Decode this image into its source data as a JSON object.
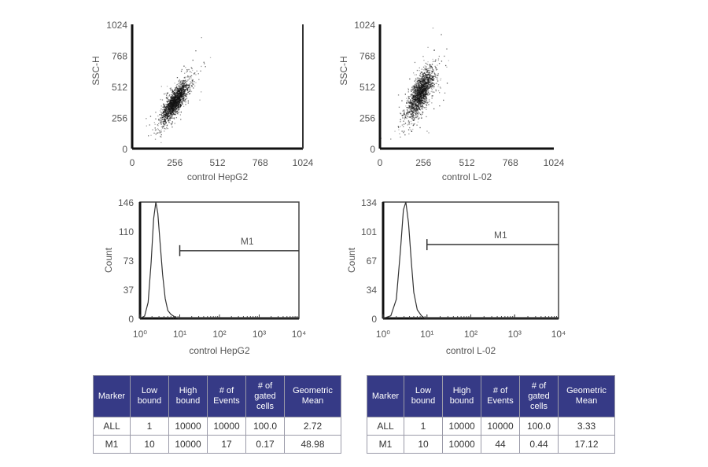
{
  "chart_data": [
    {
      "id": "scatter-hepg2",
      "type": "scatter",
      "xlabel": "control HepG2",
      "ylabel": "SSC-H",
      "xlim": [
        0,
        1024
      ],
      "ylim": [
        0,
        1024
      ],
      "xticks": [
        "0",
        "256",
        "512",
        "768",
        "1024"
      ],
      "yticks": [
        "0",
        "256",
        "512",
        "768",
        "1024"
      ],
      "cluster": {
        "x_center": 255,
        "y_center": 390,
        "x_sd": 40,
        "y_sd": 85,
        "correlation": 0.8,
        "events": 10000
      },
      "grid": false,
      "color": "#111111"
    },
    {
      "id": "scatter-l02",
      "type": "scatter",
      "xlabel": "control L-02",
      "ylabel": "SSC-H",
      "xlim": [
        0,
        1024
      ],
      "ylim": [
        0,
        1024
      ],
      "xticks": [
        "0",
        "256",
        "512",
        "768",
        "1024"
      ],
      "yticks": [
        "0",
        "256",
        "512",
        "768",
        "1024"
      ],
      "cluster": {
        "x_center": 235,
        "y_center": 460,
        "x_sd": 38,
        "y_sd": 100,
        "correlation": 0.7,
        "events": 10000
      },
      "grid": false,
      "color": "#111111"
    },
    {
      "id": "hist-hepg2",
      "type": "line",
      "xlabel": "control HepG2",
      "ylabel": "Count",
      "xscale": "log",
      "xlim": [
        1,
        10000
      ],
      "ylim": [
        0,
        146
      ],
      "xticks": [
        "10⁰",
        "10¹",
        "10²",
        "10³",
        "10⁴"
      ],
      "yticks": [
        "0",
        "37",
        "73",
        "110",
        "146"
      ],
      "x": [
        1.0,
        1.3,
        1.6,
        1.9,
        2.2,
        2.5,
        2.8,
        3.2,
        3.7,
        4.3,
        5.0,
        6.0,
        7.5,
        9.0,
        10000
      ],
      "y": [
        0,
        3,
        20,
        70,
        125,
        146,
        132,
        95,
        55,
        25,
        10,
        5,
        2,
        0,
        0
      ],
      "marker": {
        "label": "M1",
        "low": 10,
        "high": 10000,
        "level": 85
      }
    },
    {
      "id": "hist-l02",
      "type": "line",
      "xlabel": "control L-02",
      "ylabel": "Count",
      "xscale": "log",
      "xlim": [
        1,
        10000
      ],
      "ylim": [
        0,
        134
      ],
      "xticks": [
        "10⁰",
        "10¹",
        "10²",
        "10³",
        "10⁴"
      ],
      "yticks": [
        "0",
        "34",
        "67",
        "101",
        "134"
      ],
      "x": [
        1.0,
        1.5,
        2.0,
        2.5,
        2.9,
        3.3,
        3.8,
        4.4,
        5.0,
        6.0,
        7.5,
        9.0,
        10000
      ],
      "y": [
        0,
        3,
        22,
        80,
        125,
        134,
        110,
        65,
        30,
        10,
        3,
        0,
        0
      ],
      "marker": {
        "label": "M1",
        "low": 10,
        "high": 10000,
        "level": 85
      }
    }
  ],
  "tables": [
    {
      "headers": [
        "Marker",
        "Low bound",
        "High bound",
        "# of Events",
        "# of gated cells",
        "Geometric Mean"
      ],
      "rows": [
        [
          "ALL",
          "1",
          "10000",
          "10000",
          "100.0",
          "2.72"
        ],
        [
          "M1",
          "10",
          "10000",
          "17",
          "0.17",
          "48.98"
        ]
      ]
    },
    {
      "headers": [
        "Marker",
        "Low bound",
        "High bound",
        "# of Events",
        "# of gated cells",
        "Geometric Mean"
      ],
      "rows": [
        [
          "ALL",
          "1",
          "10000",
          "10000",
          "100.0",
          "3.33"
        ],
        [
          "M1",
          "10",
          "10000",
          "44",
          "0.44",
          "17.12"
        ]
      ]
    }
  ]
}
